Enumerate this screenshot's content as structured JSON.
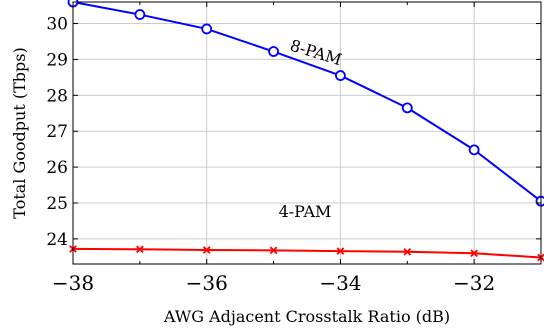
{
  "chart_data": {
    "type": "line",
    "title": "",
    "xlabel": "AWG Adjacent Crosstalk Ratio (dB)",
    "ylabel": "Total Goodput (Tbps)",
    "xlim": [
      -38,
      -31
    ],
    "ylim": [
      23.3,
      30.6
    ],
    "xticks": [
      -38,
      -36,
      -34,
      -32
    ],
    "xtick_labels": [
      "−38",
      "−36",
      "−34",
      "−32"
    ],
    "yticks": [
      24,
      25,
      26,
      27,
      28,
      29,
      30
    ],
    "ytick_labels": [
      "24",
      "25",
      "26",
      "27",
      "28",
      "29",
      "30"
    ],
    "grid": true,
    "legend": "none",
    "series": [
      {
        "name": "8-PAM",
        "color": "#0000ff",
        "marker": "circle",
        "x": [
          -38,
          -37,
          -36,
          -35,
          -34,
          -33,
          -32,
          -31
        ],
        "y": [
          30.6,
          30.25,
          29.85,
          29.22,
          28.55,
          27.65,
          26.48,
          25.05
        ]
      },
      {
        "name": "4-PAM",
        "color": "#ff0000",
        "marker": "x",
        "x": [
          -38,
          -37,
          -36,
          -35,
          -34,
          -33,
          -32,
          -31
        ],
        "y": [
          23.72,
          23.71,
          23.69,
          23.68,
          23.66,
          23.64,
          23.6,
          23.48
        ]
      }
    ]
  }
}
